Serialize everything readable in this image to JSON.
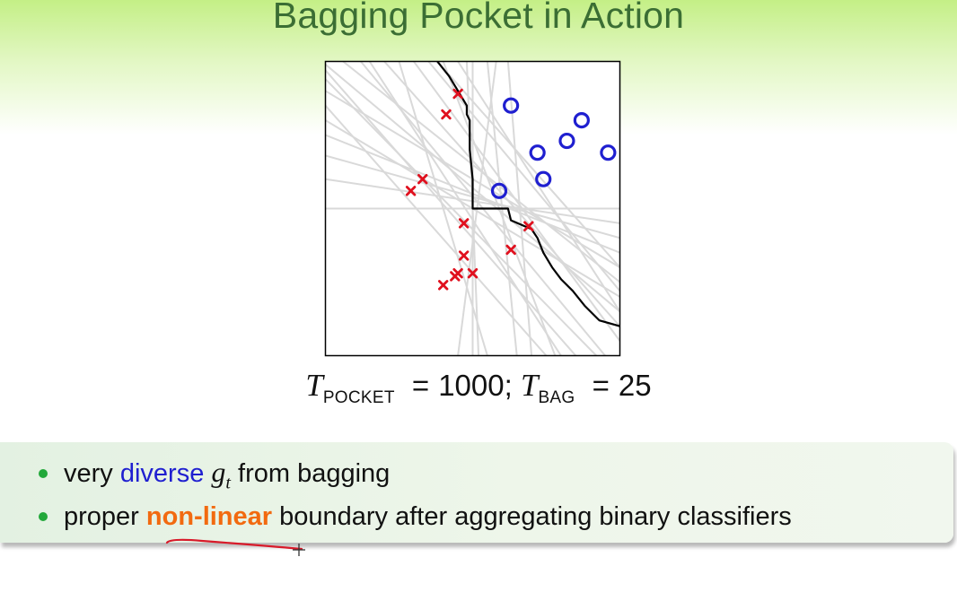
{
  "slide": {
    "title": "Bagging Pocket in Action",
    "formula": {
      "t1": "T",
      "sub1": "POCKET",
      "eq1": "=",
      "val1": "1000;",
      "t2": "T",
      "sub2": "BAG",
      "eq2": "=",
      "val2": "25"
    },
    "bullets": [
      {
        "pre": "very ",
        "highlight": "diverse",
        "g": "g",
        "gsub": "t",
        "post": " from bagging"
      },
      {
        "pre": "proper ",
        "highlight": "non-linear",
        "post": " boundary after aggregating binary classifiers"
      }
    ]
  },
  "colors": {
    "title": "#3b6e34",
    "gradient_top": "#c4ef86",
    "circle": "#1f1fd0",
    "cross": "#e0101e",
    "weak_line": "#d9d9d9",
    "boundary": "#000000",
    "highlight_blue": "#1f1fd0",
    "highlight_orange": "#f26a10",
    "bullet_dot": "#22a83a",
    "pen_annotation": "#d81a2a"
  },
  "chart_data": {
    "type": "scatter",
    "xlim": [
      0,
      1
    ],
    "ylim": [
      0,
      1
    ],
    "grid": false,
    "series": [
      {
        "marker": "o",
        "points": [
          [
            0.63,
            0.85
          ],
          [
            0.72,
            0.69
          ],
          [
            0.82,
            0.73
          ],
          [
            0.87,
            0.8
          ],
          [
            0.96,
            0.69
          ],
          [
            0.59,
            0.56
          ],
          [
            0.74,
            0.6
          ]
        ]
      },
      {
        "marker": "x",
        "points": [
          [
            0.45,
            0.89
          ],
          [
            0.41,
            0.82
          ],
          [
            0.33,
            0.6
          ],
          [
            0.29,
            0.56
          ],
          [
            0.47,
            0.45
          ],
          [
            0.69,
            0.44
          ],
          [
            0.63,
            0.36
          ],
          [
            0.47,
            0.34
          ],
          [
            0.45,
            0.28
          ],
          [
            0.5,
            0.28
          ],
          [
            0.44,
            0.27
          ],
          [
            0.4,
            0.24
          ]
        ]
      }
    ],
    "weak_boundaries": [
      [
        [
          0.0,
          0.97
        ],
        [
          0.85,
          0.0
        ]
      ],
      [
        [
          0.0,
          0.8
        ],
        [
          1.0,
          0.2
        ]
      ],
      [
        [
          0.12,
          1.0
        ],
        [
          0.95,
          0.0
        ]
      ],
      [
        [
          0.0,
          0.9
        ],
        [
          1.0,
          0.3
        ]
      ],
      [
        [
          0.25,
          1.0
        ],
        [
          0.55,
          0.0
        ]
      ],
      [
        [
          0.3,
          1.0
        ],
        [
          1.0,
          0.05
        ]
      ],
      [
        [
          0.0,
          0.68
        ],
        [
          1.0,
          0.4
        ]
      ],
      [
        [
          0.0,
          0.5
        ],
        [
          1.0,
          0.5
        ]
      ],
      [
        [
          0.4,
          1.0
        ],
        [
          0.78,
          0.0
        ]
      ],
      [
        [
          0.35,
          1.0
        ],
        [
          1.0,
          0.22
        ]
      ],
      [
        [
          0.0,
          0.94
        ],
        [
          0.92,
          0.0
        ]
      ],
      [
        [
          0.2,
          1.0
        ],
        [
          1.0,
          0.1
        ]
      ],
      [
        [
          0.5,
          1.0
        ],
        [
          0.5,
          0.0
        ]
      ],
      [
        [
          0.0,
          0.99
        ],
        [
          1.0,
          0.15
        ]
      ],
      [
        [
          0.58,
          1.0
        ],
        [
          0.45,
          0.0
        ]
      ],
      [
        [
          0.06,
          1.0
        ],
        [
          1.0,
          0.25
        ]
      ],
      [
        [
          0.45,
          1.0
        ],
        [
          1.0,
          0.15
        ]
      ],
      [
        [
          0.0,
          0.75
        ],
        [
          1.0,
          0.35
        ]
      ],
      [
        [
          0.55,
          1.0
        ],
        [
          0.65,
          0.0
        ]
      ],
      [
        [
          0.0,
          0.85
        ],
        [
          0.75,
          0.0
        ]
      ],
      [
        [
          0.38,
          1.0
        ],
        [
          1.0,
          0.3
        ]
      ],
      [
        [
          0.62,
          1.0
        ],
        [
          0.7,
          0.0
        ]
      ],
      [
        [
          0.15,
          1.0
        ],
        [
          0.8,
          0.0
        ]
      ],
      [
        [
          0.0,
          0.6
        ],
        [
          1.0,
          0.45
        ]
      ],
      [
        [
          0.48,
          1.0
        ],
        [
          0.52,
          0.0
        ]
      ]
    ],
    "aggregate_boundary": [
      [
        0.38,
        1.0
      ],
      [
        0.42,
        0.95
      ],
      [
        0.45,
        0.9
      ],
      [
        0.48,
        0.85
      ],
      [
        0.48,
        0.82
      ],
      [
        0.49,
        0.8
      ],
      [
        0.49,
        0.7
      ],
      [
        0.5,
        0.6
      ],
      [
        0.5,
        0.5
      ],
      [
        0.62,
        0.5
      ],
      [
        0.63,
        0.46
      ],
      [
        0.7,
        0.43
      ],
      [
        0.72,
        0.4
      ],
      [
        0.74,
        0.35
      ],
      [
        0.77,
        0.3
      ],
      [
        0.8,
        0.26
      ],
      [
        0.84,
        0.22
      ],
      [
        0.88,
        0.17
      ],
      [
        0.93,
        0.12
      ],
      [
        1.0,
        0.1
      ]
    ]
  }
}
